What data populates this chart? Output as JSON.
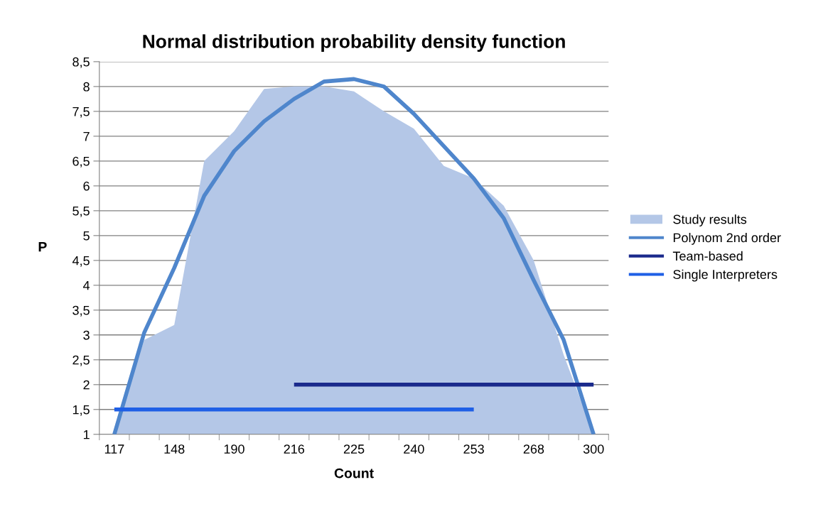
{
  "chart_data": {
    "type": "area",
    "title": "Normal distribution probability density function",
    "xlabel": "Count",
    "ylabel": "P",
    "categories": [
      "117",
      null,
      "148",
      null,
      "190",
      null,
      "216",
      null,
      "225",
      null,
      "240",
      null,
      "253",
      null,
      "268",
      null,
      "300"
    ],
    "ylim": [
      1,
      8.5
    ],
    "yticks": [
      {
        "value": 1,
        "label": "1"
      },
      {
        "value": 1.5,
        "label": "1,5"
      },
      {
        "value": 2,
        "label": "2"
      },
      {
        "value": 2.5,
        "label": "2,5"
      },
      {
        "value": 3,
        "label": "3"
      },
      {
        "value": 3.5,
        "label": "3,5"
      },
      {
        "value": 4,
        "label": "4"
      },
      {
        "value": 4.5,
        "label": "4,5"
      },
      {
        "value": 5,
        "label": "5"
      },
      {
        "value": 5.5,
        "label": "5,5"
      },
      {
        "value": 6,
        "label": "6"
      },
      {
        "value": 6.5,
        "label": "6,5"
      },
      {
        "value": 7,
        "label": "7"
      },
      {
        "value": 7.5,
        "label": "7,5"
      },
      {
        "value": 8,
        "label": "8"
      },
      {
        "value": 8.5,
        "label": "8,5"
      }
    ],
    "grid": "y",
    "legend": "right",
    "series": [
      {
        "name": "Study results",
        "color": "#b4c7e7",
        "values": [
          1.1,
          2.9,
          3.2,
          6.5,
          7.1,
          7.95,
          8.0,
          8.0,
          7.9,
          7.5,
          7.15,
          6.4,
          6.15,
          5.6,
          4.5,
          2.6,
          1.0
        ]
      },
      {
        "name": "Polynom 2nd order",
        "type": "line",
        "color": "#4f86cc",
        "values": [
          1.0,
          3.05,
          4.35,
          5.8,
          6.7,
          7.3,
          7.75,
          8.1,
          8.15,
          8.0,
          7.45,
          6.8,
          6.15,
          5.35,
          4.1,
          2.9,
          1.0
        ]
      },
      {
        "name": "Team-based",
        "type": "line",
        "color": "#1a2a8c",
        "values": [
          null,
          null,
          null,
          null,
          null,
          null,
          2,
          2,
          2,
          2,
          2,
          2,
          2,
          2,
          2,
          2,
          2
        ]
      },
      {
        "name": "Single Interpreters",
        "type": "line",
        "color": "#1f5fe6",
        "values": [
          1.5,
          1.5,
          1.5,
          1.5,
          1.5,
          1.5,
          1.5,
          1.5,
          1.5,
          1.5,
          1.5,
          1.5,
          1.5,
          null,
          null,
          null,
          null
        ]
      }
    ]
  }
}
